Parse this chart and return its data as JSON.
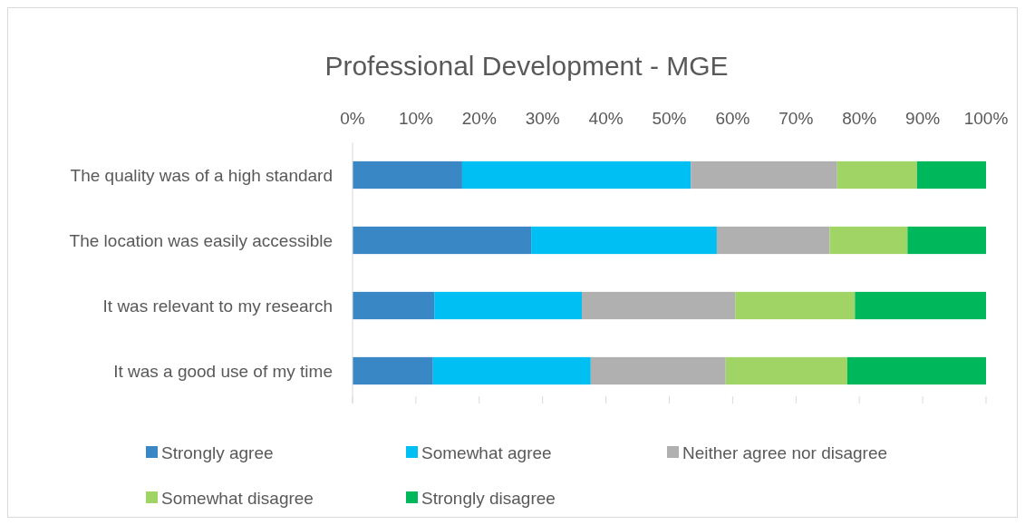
{
  "chart_data": {
    "type": "bar",
    "orientation": "horizontal",
    "stacked": true,
    "title": "Professional Development - MGE",
    "categories": [
      "The quality was of a high standard",
      "The location was easily accessible",
      "It was relevant to my research",
      "It was a good use of my time"
    ],
    "series": [
      {
        "name": "Strongly agree",
        "color": "#3a87c6",
        "values": [
          17.3,
          28.2,
          12.9,
          12.7
        ]
      },
      {
        "name": "Somewhat agree",
        "color": "#00bff3",
        "values": [
          36.1,
          29.3,
          23.3,
          24.9
        ]
      },
      {
        "name": "Neither agree nor disagree",
        "color": "#b0b0b0",
        "values": [
          23.1,
          17.8,
          24.2,
          21.3
        ]
      },
      {
        "name": "Somewhat disagree",
        "color": "#a0d566",
        "values": [
          12.6,
          12.3,
          18.9,
          19.2
        ]
      },
      {
        "name": "Strongly disagree",
        "color": "#00b85c",
        "values": [
          10.9,
          12.4,
          20.7,
          21.9
        ]
      }
    ],
    "xlim": [
      0,
      100
    ],
    "xticks": [
      {
        "value": 0,
        "label": "0%"
      },
      {
        "value": 10,
        "label": "10%"
      },
      {
        "value": 20,
        "label": "20%"
      },
      {
        "value": 30,
        "label": "30%"
      },
      {
        "value": 40,
        "label": "40%"
      },
      {
        "value": 50,
        "label": "50%"
      },
      {
        "value": 60,
        "label": "60%"
      },
      {
        "value": 70,
        "label": "70%"
      },
      {
        "value": 80,
        "label": "80%"
      },
      {
        "value": 90,
        "label": "90%"
      },
      {
        "value": 100,
        "label": "100%"
      }
    ],
    "grid": false,
    "legend": "bottom"
  }
}
